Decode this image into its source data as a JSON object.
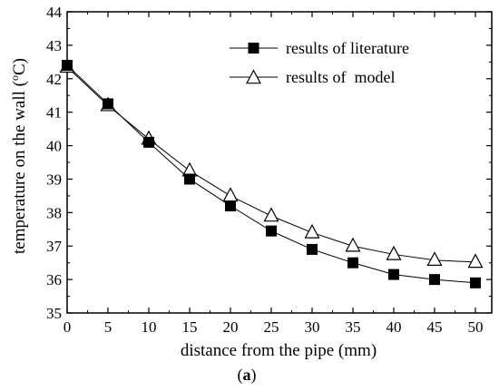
{
  "chart_data": {
    "type": "line",
    "xlabel": "distance from the pipe (mm)",
    "ylabel_prefix": "temperature on the wall (",
    "ylabel_sup": "o",
    "ylabel_suffix": "C)",
    "caption_open": "(",
    "caption_letter": "a",
    "caption_close": ")",
    "xlim": [
      0,
      52
    ],
    "ylim": [
      35,
      44
    ],
    "x": [
      0,
      5,
      10,
      15,
      20,
      25,
      30,
      35,
      40,
      45,
      50
    ],
    "x_ticks": [
      0,
      5,
      10,
      15,
      20,
      25,
      30,
      35,
      40,
      45,
      50
    ],
    "y_ticks": [
      35,
      36,
      37,
      38,
      39,
      40,
      41,
      42,
      43,
      44
    ],
    "legend_position": "top-right",
    "grid": false,
    "series": [
      {
        "name": "results of literature",
        "marker": "filled-square",
        "color": "#000000",
        "values": [
          42.4,
          41.25,
          40.1,
          39.0,
          38.2,
          37.45,
          36.9,
          36.5,
          36.15,
          36.0,
          35.9
        ]
      },
      {
        "name": "results of  model",
        "marker": "open-triangle",
        "color": "#000000",
        "values": [
          42.35,
          41.2,
          40.2,
          39.25,
          38.5,
          37.9,
          37.4,
          37.0,
          36.75,
          36.58,
          36.52
        ]
      }
    ]
  }
}
